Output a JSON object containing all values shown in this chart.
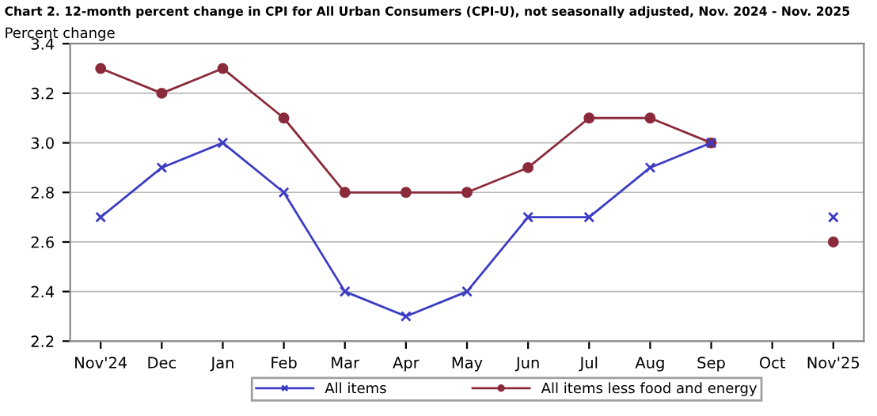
{
  "chart_data": {
    "type": "line",
    "title": "Chart 2. 12-month percent change in CPI for All Urban Consumers (CPI-U), not seasonally adjusted, Nov. 2024 - Nov. 2025",
    "ylabel": "Percent change",
    "categories": [
      "Nov'24",
      "Dec",
      "Jan",
      "Feb",
      "Mar",
      "Apr",
      "May",
      "Jun",
      "Jul",
      "Aug",
      "Sep",
      "Oct",
      "Nov'25"
    ],
    "series": [
      {
        "name": "All items",
        "color": "#3b3bc4",
        "marker": "cross",
        "values": [
          2.7,
          2.9,
          3.0,
          2.8,
          2.4,
          2.3,
          2.4,
          2.7,
          2.7,
          2.9,
          3.0,
          null,
          2.7
        ]
      },
      {
        "name": "All items less food and energy",
        "color": "#8b2a3a",
        "marker": "circle",
        "values": [
          3.3,
          3.2,
          3.3,
          3.1,
          2.8,
          2.8,
          2.8,
          2.9,
          3.1,
          3.1,
          3.0,
          null,
          2.6
        ]
      }
    ],
    "ylim": [
      2.2,
      3.4
    ],
    "yticks": [
      2.2,
      2.4,
      2.6,
      2.8,
      {
        "value": 3,
        "label": "3.0"
      },
      3.2,
      3.4
    ],
    "grid": "y",
    "legend": "bottom",
    "line_style": "solid"
  }
}
